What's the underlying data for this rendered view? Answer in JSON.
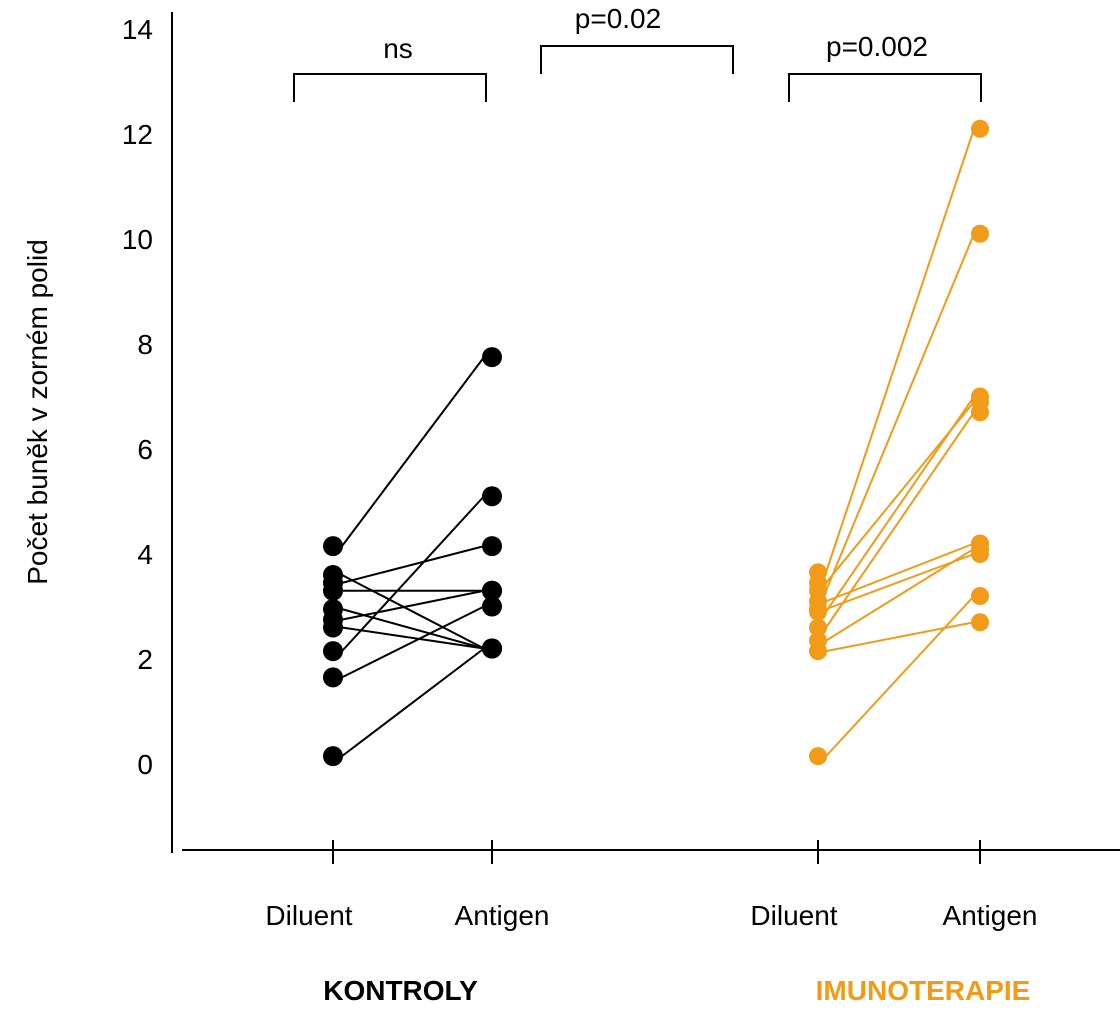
{
  "chart_data": {
    "type": "scatter",
    "title": "",
    "xlabel": "",
    "ylabel": "Počet buněk v zorném polid",
    "ylim": [
      -1.7,
      14.2
    ],
    "yticks": [
      0,
      2,
      4,
      6,
      8,
      10,
      12,
      14
    ],
    "grid": false,
    "groups": [
      {
        "name": "KONTROLY",
        "color": "#000000",
        "conditions": [
          "Diluent",
          "Antigen"
        ],
        "pairs": [
          [
            0.15,
            2.2
          ],
          [
            1.65,
            3.0
          ],
          [
            2.15,
            5.1
          ],
          [
            2.6,
            2.2
          ],
          [
            2.75,
            3.3
          ],
          [
            2.95,
            2.2
          ],
          [
            3.45,
            4.15
          ],
          [
            3.3,
            3.3
          ],
          [
            3.6,
            2.2
          ],
          [
            4.15,
            7.75
          ]
        ]
      },
      {
        "name": "IMUNOTERAPIE",
        "color": "#F29B19",
        "conditions": [
          "Diluent",
          "Antigen"
        ],
        "pairs": [
          [
            0.15,
            3.2
          ],
          [
            2.15,
            2.7
          ],
          [
            2.35,
            4.1
          ],
          [
            2.6,
            6.7
          ],
          [
            2.9,
            7.0
          ],
          [
            2.95,
            4.0
          ],
          [
            3.3,
            10.1
          ],
          [
            3.1,
            4.2
          ],
          [
            3.65,
            12.1
          ],
          [
            3.45,
            6.9
          ]
        ]
      }
    ],
    "comparisons": [
      {
        "label": "ns",
        "between": "Kontroly: Diluent vs Antigen"
      },
      {
        "label": "p=0.02",
        "between": "Kontroly Antigen vs Imunoterapie Diluent"
      },
      {
        "label": "p=0.002",
        "between": "Imunoterapie: Diluent vs Antigen"
      }
    ]
  }
}
